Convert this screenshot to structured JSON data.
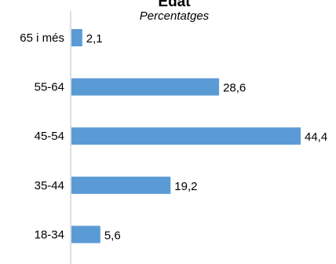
{
  "chart_data": {
    "type": "bar",
    "orientation": "horizontal",
    "title": "Edat",
    "subtitle": "Percentatges",
    "categories": [
      "65 i més",
      "55-64",
      "45-54",
      "35-44",
      "18-34"
    ],
    "values": [
      2.1,
      28.6,
      44.4,
      19.2,
      5.6
    ],
    "value_labels": [
      "2,1",
      "28,6",
      "44,4",
      "19,2",
      "5,6"
    ],
    "xlim": [
      0,
      44.4
    ],
    "grid": false,
    "legend": "none",
    "bar_color": "#5B9BD5",
    "axis_color": "#BFBFBF"
  }
}
